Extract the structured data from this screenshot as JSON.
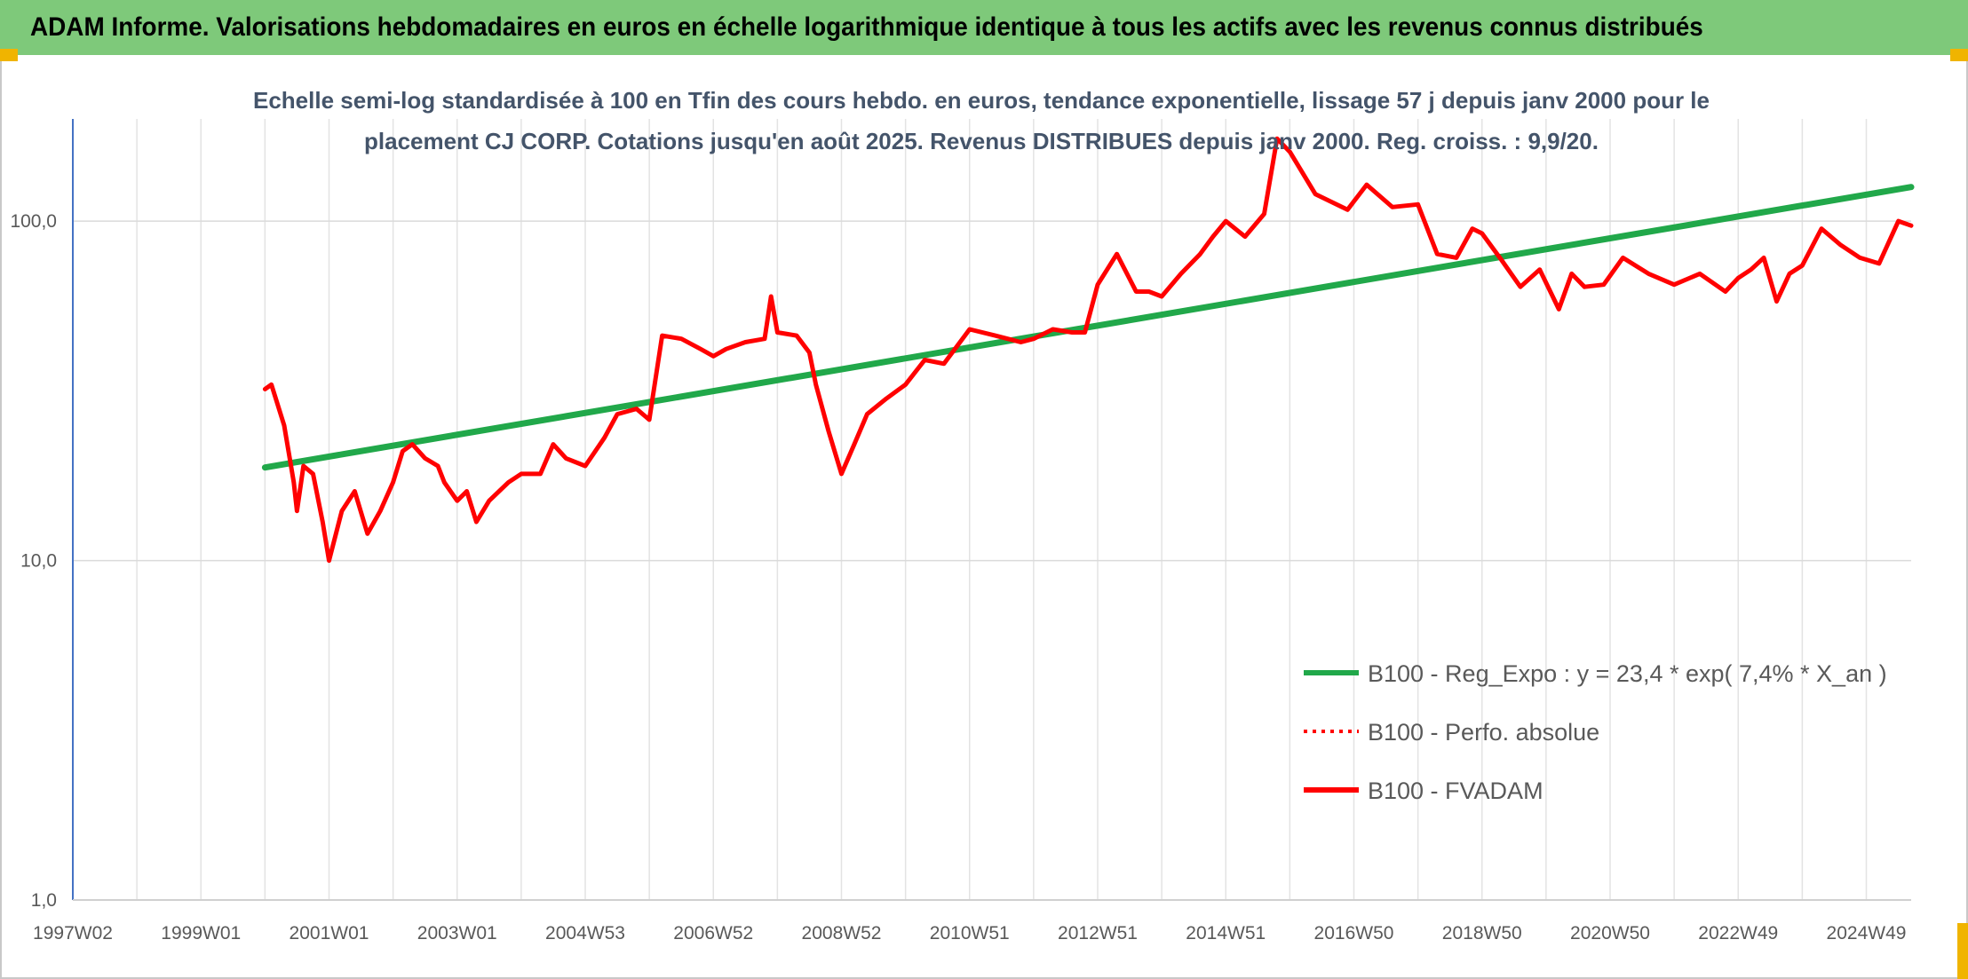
{
  "header": {
    "title": "ADAM Informe. Valorisations hebdomadaires en euros en échelle logarithmique identique à tous les actifs avec les revenus connus distribués"
  },
  "chart_data": {
    "type": "line",
    "subtitle_lines": [
      "Echelle semi-log standardisée à 100 en Tfin des cours hebdo. en euros, tendance exponentielle, lissage 57 j depuis janv 2000 pour le",
      "placement CJ CORP. Cotations jusqu'en août 2025. Revenus DISTRIBUES depuis janv 2000. Reg. croiss. : 9,9/20."
    ],
    "y_scale": "log",
    "ylim": [
      1,
      200
    ],
    "y_ticks": [
      {
        "value": 1,
        "label": "1,0"
      },
      {
        "value": 10,
        "label": "10,0"
      },
      {
        "value": 100,
        "label": "100,0"
      }
    ],
    "xlim": [
      1997.0,
      2025.7
    ],
    "x_ticks": [
      {
        "value": 1997.0,
        "label": "1997W02"
      },
      {
        "value": 1999.0,
        "label": "1999W01"
      },
      {
        "value": 2001.0,
        "label": "2001W01"
      },
      {
        "value": 2003.0,
        "label": "2003W01"
      },
      {
        "value": 2005.0,
        "label": "2004W53"
      },
      {
        "value": 2007.0,
        "label": "2006W52"
      },
      {
        "value": 2009.0,
        "label": "2008W52"
      },
      {
        "value": 2011.0,
        "label": "2010W51"
      },
      {
        "value": 2013.0,
        "label": "2012W51"
      },
      {
        "value": 2015.0,
        "label": "2014W51"
      },
      {
        "value": 2017.0,
        "label": "2016W50"
      },
      {
        "value": 2019.0,
        "label": "2018W50"
      },
      {
        "value": 2021.0,
        "label": "2020W50"
      },
      {
        "value": 2023.0,
        "label": "2022W49"
      },
      {
        "value": 2025.0,
        "label": "2024W49"
      }
    ],
    "grid": "vertical lines at every 2001W01-style tick and midpoints; horizontal lines at 10 and 100",
    "legend_position": "bottom-right",
    "series": [
      {
        "name": "B100 - Reg_Expo : y = 23,4 * exp( 7,4% *  X_an )",
        "color": "#21a84a",
        "style": "solid",
        "x": [
          2000.0,
          2025.7
        ],
        "y": [
          18.8,
          126
        ]
      },
      {
        "name": "B100 - Perfo. absolue",
        "color": "#ff0000",
        "style": "dotted",
        "x": [],
        "y": []
      },
      {
        "name": "B100 - FVADAM",
        "color": "#ff0000",
        "style": "solid",
        "x": [
          2000.0,
          2000.1,
          2000.3,
          2000.45,
          2000.5,
          2000.6,
          2000.75,
          2000.9,
          2001.0,
          2001.2,
          2001.4,
          2001.6,
          2001.8,
          2002.0,
          2002.15,
          2002.3,
          2002.5,
          2002.7,
          2002.8,
          2003.0,
          2003.15,
          2003.3,
          2003.5,
          2003.8,
          2004.0,
          2004.3,
          2004.5,
          2004.7,
          2005.0,
          2005.3,
          2005.5,
          2005.8,
          2006.0,
          2006.2,
          2006.5,
          2006.8,
          2007.0,
          2007.2,
          2007.5,
          2007.8,
          2007.9,
          2008.0,
          2008.3,
          2008.5,
          2008.6,
          2008.8,
          2009.0,
          2009.2,
          2009.4,
          2009.7,
          2010.0,
          2010.3,
          2010.6,
          2011.0,
          2011.4,
          2011.8,
          2012.0,
          2012.3,
          2012.6,
          2012.8,
          2013.0,
          2013.3,
          2013.6,
          2013.8,
          2014.0,
          2014.3,
          2014.6,
          2014.8,
          2015.0,
          2015.3,
          2015.6,
          2015.8,
          2016.0,
          2016.4,
          2016.9,
          2017.2,
          2017.6,
          2018.0,
          2018.3,
          2018.6,
          2018.85,
          2019.0,
          2019.3,
          2019.6,
          2019.9,
          2020.2,
          2020.4,
          2020.6,
          2020.9,
          2021.2,
          2021.6,
          2022.0,
          2022.4,
          2022.8,
          2023.0,
          2023.2,
          2023.4,
          2023.6,
          2023.8,
          2024.0,
          2024.3,
          2024.6,
          2024.9,
          2025.2,
          2025.5,
          2025.7
        ],
        "y": [
          32,
          33,
          25,
          17,
          14,
          19,
          18,
          13,
          10,
          14,
          16,
          12,
          14,
          17,
          21,
          22,
          20,
          19,
          17,
          15,
          16,
          13,
          15,
          17,
          18,
          18,
          22,
          20,
          19,
          23,
          27,
          28,
          26,
          46,
          45,
          42,
          40,
          42,
          44,
          45,
          60,
          47,
          46,
          41,
          33,
          24,
          18,
          22,
          27,
          30,
          33,
          39,
          38,
          48,
          46,
          44,
          45,
          48,
          47,
          47,
          65,
          80,
          62,
          62,
          60,
          70,
          80,
          90,
          100,
          90,
          105,
          175,
          160,
          120,
          108,
          128,
          110,
          112,
          80,
          78,
          95,
          92,
          77,
          64,
          72,
          55,
          70,
          64,
          65,
          78,
          70,
          65,
          70,
          62,
          68,
          72,
          78,
          58,
          70,
          74,
          95,
          85,
          78,
          75,
          100,
          97
        ]
      }
    ]
  }
}
